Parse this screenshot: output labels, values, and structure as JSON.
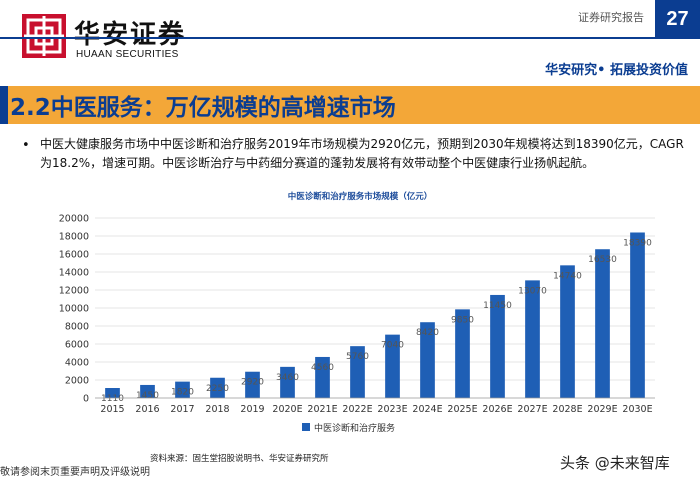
{
  "header": {
    "brand_cn": "华安证券",
    "brand_en": "HUAAN SECURITIES",
    "report_type": "证券研究报告",
    "page_number": "27",
    "slogan": "华安研究• 拓展投资价值"
  },
  "section": {
    "title": "2.2中医服务：万亿规模的高增速市场"
  },
  "bullet": {
    "marker": "•",
    "text": "中医大健康服务市场中中医诊断和治疗服务2019年市场规模为2920亿元，预期到2030年规模将达到18390亿元，CAGR 为18.2%，增速可期。中医诊断治疗与中药细分赛道的蓬勃发展将有效带动整个中医健康行业扬帆起航。"
  },
  "chart_data": {
    "type": "bar",
    "title": "中医诊断和治疗服务市场规模（亿元）",
    "categories": [
      "2015",
      "2016",
      "2017",
      "2018",
      "2019",
      "2020E",
      "2021E",
      "2022E",
      "2023E",
      "2024E",
      "2025E",
      "2026E",
      "2027E",
      "2028E",
      "2029E",
      "2030E"
    ],
    "series": [
      {
        "name": "中医诊断和治疗服务",
        "values": [
          1110,
          1450,
          1820,
          2250,
          2920,
          3460,
          4560,
          5760,
          7040,
          8420,
          9850,
          11450,
          13070,
          14740,
          16530,
          18390
        ],
        "color": "#1f5fb5"
      }
    ],
    "ylim": [
      0,
      20000
    ],
    "yticks": [
      0,
      2000,
      4000,
      6000,
      8000,
      10000,
      12000,
      14000,
      16000,
      18000,
      20000
    ],
    "grid": true,
    "legend": "bottom",
    "xlabel": "",
    "ylabel": ""
  },
  "footer": {
    "source": "资料来源：固生堂招股说明书、华安证券研究所",
    "disclaimer": "敬请参阅末页重要声明及评级说明",
    "watermark": "头条 @未来智库"
  }
}
